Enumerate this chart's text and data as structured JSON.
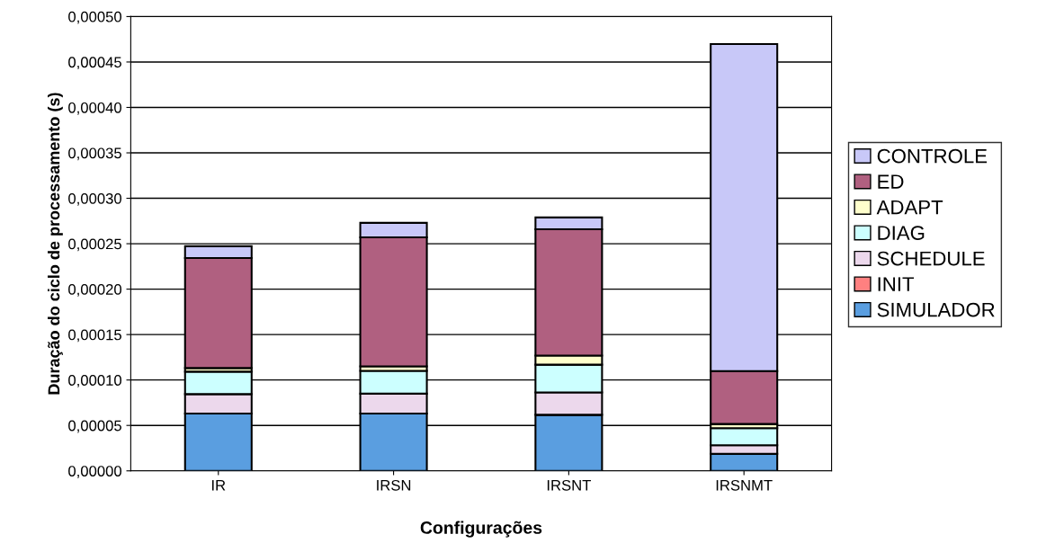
{
  "chart_data": {
    "type": "bar",
    "stacked": true,
    "xlabel": "Configurações",
    "ylabel": "Duração do ciclo de processamento (s)",
    "categories": [
      "IR",
      "IRSN",
      "IRSNT",
      "IRSNMT"
    ],
    "series": [
      {
        "name": "SIMULADOR",
        "color": "#5a9ee0",
        "values": [
          6.3e-05,
          6.3e-05,
          6.17e-05,
          1.88e-05
        ]
      },
      {
        "name": "INIT",
        "color": "#ff8080",
        "values": [
          null,
          null,
          null,
          null
        ]
      },
      {
        "name": "SCHEDULE",
        "color": "#ecd8ec",
        "values": [
          2.15e-05,
          2.2e-05,
          2.47e-05,
          9.4e-06
        ]
      },
      {
        "name": "DIAG",
        "color": "#ccffff",
        "values": [
          2.47e-05,
          2.5e-05,
          3.05e-05,
          1.88e-05
        ]
      },
      {
        "name": "ADAPT",
        "color": "#ffffcc",
        "values": [
          4e-06,
          5e-06,
          1e-05,
          4.6e-06
        ]
      },
      {
        "name": "ED",
        "color": "#b06080",
        "values": [
          0.000121,
          0.000142,
          0.000139,
          5.82e-05
        ]
      },
      {
        "name": "CONTROLE",
        "color": "#c8c8f8",
        "values": [
          1.3e-05,
          1.6e-05,
          1.3e-05,
          0.00036
        ]
      }
    ],
    "ylim": [
      0,
      0.0005
    ],
    "yticks": [
      {
        "value": 0,
        "label": "0,00000"
      },
      {
        "value": 5e-05,
        "label": "0,00005"
      },
      {
        "value": 0.0001,
        "label": "0,00010"
      },
      {
        "value": 0.00015,
        "label": "0,00015"
      },
      {
        "value": 0.0002,
        "label": "0,00020"
      },
      {
        "value": 0.00025,
        "label": "0,00025"
      },
      {
        "value": 0.0003,
        "label": "0,00030"
      },
      {
        "value": 0.00035,
        "label": "0,00035"
      },
      {
        "value": 0.0004,
        "label": "0,00040"
      },
      {
        "value": 0.00045,
        "label": "0,00045"
      },
      {
        "value": 0.0005,
        "label": "0,00050"
      }
    ],
    "grid": "y",
    "legend": "right"
  }
}
